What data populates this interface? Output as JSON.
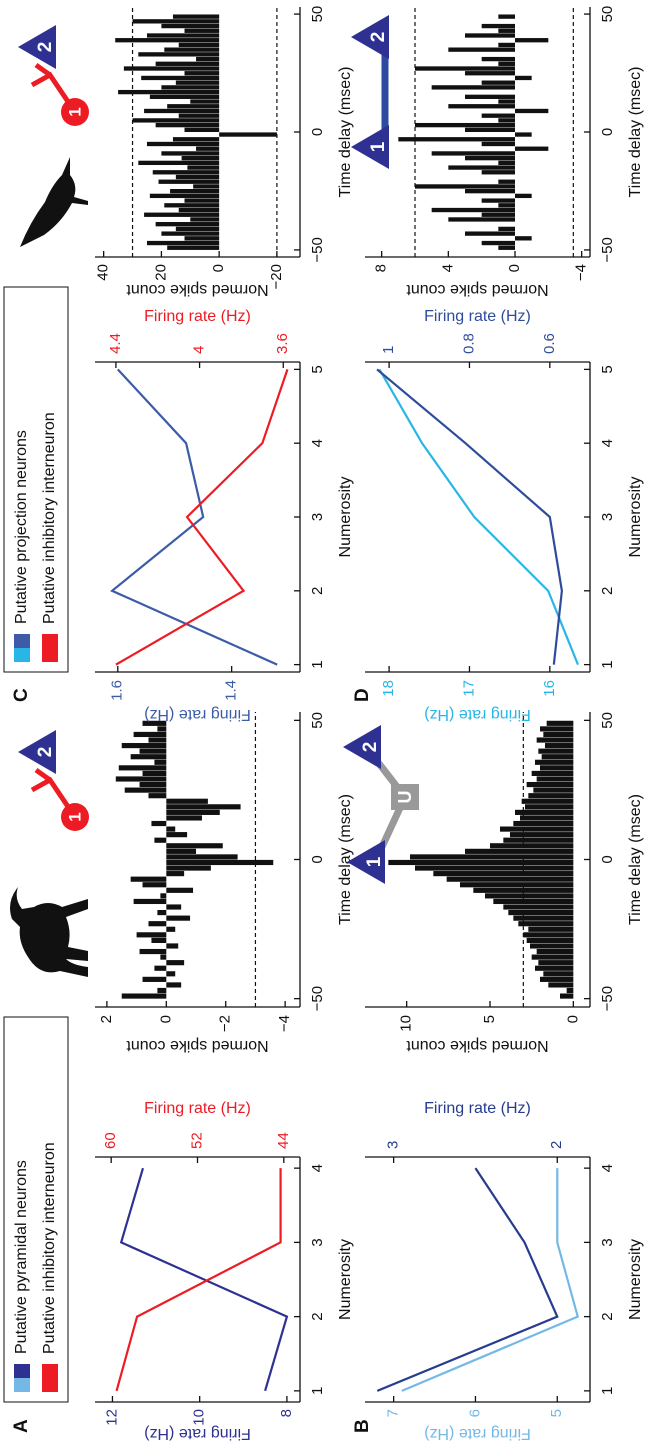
{
  "chart_data": [
    {
      "type": "line",
      "panel": "A",
      "x": [
        1,
        2,
        3,
        4
      ],
      "xlim": [
        0.85,
        4.15
      ],
      "xticks": [
        1,
        2,
        3,
        4
      ],
      "xlabel": "Numerosity",
      "ylabel": "Firing rate (Hz)",
      "y2label": "Firing rate (Hz)",
      "ylim": [
        7.7,
        12.4
      ],
      "yticks": [
        8,
        10,
        12
      ],
      "y2lim": [
        42.5,
        61.5
      ],
      "y2ticks": [
        44,
        52,
        60
      ],
      "legend": true,
      "series": [
        {
          "name": "Putative pyramidal neurons",
          "color": "#2e3192",
          "values": [
            8.5,
            8.0,
            11.8,
            11.3
          ]
        },
        {
          "name": "Putative inhibitory interneuron",
          "color": "#ed1c24",
          "axis": "y2",
          "values": [
            59.5,
            57.6,
            44.3,
            44.3
          ]
        }
      ]
    },
    {
      "type": "histogram",
      "xlabel": "Time delay (msec)",
      "ylabel": "Normed spike count",
      "color": "#111111",
      "neuron_labels": [
        "1",
        "2"
      ],
      "bins": [
        -50,
        -48,
        -46,
        -44,
        -42,
        -40,
        -38,
        -36,
        -34,
        -32,
        -30,
        -28,
        -26,
        -24,
        -22,
        -20,
        -18,
        -16,
        -14,
        -12,
        -10,
        -8,
        -6,
        -4,
        -2,
        0,
        2,
        4,
        6,
        8,
        10,
        12,
        14,
        16,
        18,
        20,
        22,
        24,
        26,
        28,
        30,
        32,
        34,
        36,
        38,
        40,
        42,
        44,
        46,
        48,
        50
      ],
      "values": [
        1.5,
        0.3,
        -0.5,
        0.8,
        -0.3,
        0.4,
        -0.6,
        0.2,
        0.9,
        -0.4,
        0.5,
        1.0,
        -0.3,
        0.6,
        -0.8,
        0.3,
        -0.5,
        1.1,
        0.2,
        -0.9,
        0.8,
        1.2,
        -0.6,
        -1.5,
        -3.6,
        -2.4,
        -1.0,
        -1.9,
        0.4,
        -0.7,
        -0.3,
        0.5,
        -1.2,
        -1.8,
        -2.5,
        -1.4,
        0.6,
        1.4,
        0.9,
        1.7,
        0.8,
        1.6,
        0.4,
        1.2,
        0.9,
        1.5,
        0.6,
        1.1,
        0.3,
        0.8
      ],
      "reference_lines": [
        -3
      ],
      "xlim": [
        -53,
        53
      ],
      "xticks": [
        {
          "value": -50,
          "label": "−50"
        },
        0,
        50
      ],
      "ylim": [
        -4.5,
        2.4
      ],
      "yticks": [
        {
          "value": -4,
          "label": "−4"
        },
        {
          "value": -2,
          "label": "−2"
        },
        0,
        2
      ]
    },
    {
      "type": "line",
      "panel": "C",
      "x": [
        1,
        2,
        3,
        4,
        5
      ],
      "xlim": [
        0.9,
        5.1
      ],
      "xticks": [
        1,
        2,
        3,
        4,
        5
      ],
      "xlabel": "Numerosity",
      "ylabel": "Firing rate (Hz)",
      "y2label": "Firing rate (Hz)",
      "ylim": [
        1.28,
        1.64
      ],
      "yticks": [
        1.4,
        1.6
      ],
      "y2lim": [
        3.52,
        4.5
      ],
      "y2ticks": [
        3.6,
        4,
        4.4
      ],
      "legend": true,
      "series": [
        {
          "name": "Putative projection neurons",
          "color": "#3d5ca8",
          "values": [
            1.32,
            1.61,
            1.45,
            1.48,
            1.6
          ]
        },
        {
          "name": "Putative inhibitory interneuron",
          "color": "#ed1c24",
          "axis": "y2",
          "values": [
            4.4,
            3.79,
            4.06,
            3.7,
            3.58
          ]
        }
      ]
    },
    {
      "type": "histogram",
      "xlabel": "Time delay (msec)",
      "ylabel": "Normed spike count",
      "color": "#111111",
      "neuron_labels": [
        "1",
        "2"
      ],
      "bins": [
        -50,
        -48,
        -46,
        -44,
        -42,
        -40,
        -38,
        -36,
        -34,
        -32,
        -30,
        -28,
        -26,
        -24,
        -22,
        -20,
        -18,
        -16,
        -14,
        -12,
        -10,
        -8,
        -6,
        -4,
        -2,
        0,
        2,
        4,
        6,
        8,
        10,
        12,
        14,
        16,
        18,
        20,
        22,
        24,
        26,
        28,
        30,
        32,
        34,
        36,
        38,
        40,
        42,
        44,
        46,
        48,
        50
      ],
      "values": [
        18,
        25,
        12,
        20,
        15,
        22,
        10,
        26,
        14,
        19,
        12,
        24,
        17,
        9,
        21,
        15,
        23,
        11,
        28,
        13,
        20,
        8,
        25,
        16,
        -20,
        12,
        22,
        30,
        14,
        26,
        18,
        10,
        24,
        35,
        20,
        15,
        27,
        12,
        33,
        22,
        8,
        28,
        19,
        14,
        36,
        25,
        12,
        20,
        30,
        16
      ],
      "reference_lines": [
        30,
        -20
      ],
      "xlim": [
        -53,
        53
      ],
      "xticks": [
        {
          "value": -50,
          "label": "−50"
        },
        0,
        50
      ],
      "ylim": [
        -28,
        43
      ],
      "yticks": [
        {
          "value": -20,
          "label": "−20"
        },
        0,
        20,
        40
      ]
    },
    {
      "type": "line",
      "panel": "B",
      "x": [
        1,
        2,
        3,
        4
      ],
      "xlim": [
        0.85,
        4.15
      ],
      "xticks": [
        1,
        2,
        3,
        4
      ],
      "xlabel": "Numerosity",
      "ylabel": "Firing rate (Hz)",
      "y2label": "Firing rate (Hz)",
      "ylim": [
        4.6,
        7.35
      ],
      "yticks": [
        5,
        6,
        7
      ],
      "y2lim": [
        1.8,
        3.175
      ],
      "y2ticks": [
        2,
        3
      ],
      "series": [
        {
          "color": "#74b9e6",
          "values": [
            6.9,
            4.75,
            5.0,
            5.0
          ]
        },
        {
          "color": "#263c8f",
          "axis": "y2",
          "values": [
            3.1,
            2.0,
            2.2,
            2.5
          ]
        }
      ]
    },
    {
      "type": "histogram",
      "xlabel": "Time delay (msec)",
      "ylabel": "Normed spike count",
      "color": "#111111",
      "neuron_labels": [
        "1",
        "2"
      ],
      "unit_label": "U",
      "bins": [
        -50,
        -48,
        -46,
        -44,
        -42,
        -40,
        -38,
        -36,
        -34,
        -32,
        -30,
        -28,
        -26,
        -24,
        -22,
        -20,
        -18,
        -16,
        -14,
        -12,
        -10,
        -8,
        -6,
        -4,
        -2,
        0,
        2,
        4,
        6,
        8,
        10,
        12,
        14,
        16,
        18,
        20,
        22,
        24,
        26,
        28,
        30,
        32,
        34,
        36,
        38,
        40,
        42,
        44,
        46,
        48,
        50
      ],
      "values": [
        0.8,
        0.4,
        1.5,
        2.0,
        1.8,
        2.3,
        2.1,
        2.5,
        2.2,
        2.6,
        2.8,
        3.0,
        2.7,
        3.3,
        3.6,
        3.9,
        4.2,
        4.8,
        5.3,
        6.0,
        6.8,
        7.6,
        8.4,
        9.5,
        11.1,
        9.8,
        6.5,
        5.0,
        4.2,
        3.8,
        4.4,
        3.6,
        3.2,
        3.5,
        2.9,
        3.1,
        2.7,
        2.4,
        2.8,
        2.2,
        2.5,
        2.0,
        2.3,
        1.9,
        2.1,
        1.7,
        2.2,
        1.8,
        2.0,
        1.6
      ],
      "reference_lines": [
        3
      ],
      "xlim": [
        -53,
        53
      ],
      "xticks": [
        {
          "value": -50,
          "label": "−50"
        },
        0,
        50
      ],
      "ylim": [
        -1,
        12.5
      ],
      "yticks": [
        0,
        5,
        10
      ]
    },
    {
      "type": "line",
      "panel": "D",
      "x": [
        1,
        2,
        3,
        4,
        5
      ],
      "xlim": [
        0.9,
        5.1
      ],
      "xticks": [
        1,
        2,
        3,
        4,
        5
      ],
      "xlabel": "Numerosity",
      "ylabel": "Firing rate (Hz)",
      "y2label": "Firing rate (Hz)",
      "ylim": [
        15.5,
        18.3
      ],
      "yticks": [
        16,
        17,
        18
      ],
      "y2lim": [
        0.5,
        1.06
      ],
      "y2ticks": [
        0.6,
        0.8,
        1
      ],
      "series": [
        {
          "color": "#29b6e6",
          "values": [
            15.65,
            16.02,
            16.94,
            17.59,
            18.12
          ]
        },
        {
          "color": "#2f4c9c",
          "axis": "y2",
          "values": [
            0.59,
            0.57,
            0.6,
            0.81,
            1.03
          ]
        }
      ]
    },
    {
      "type": "histogram",
      "xlabel": "Time delay (msec)",
      "ylabel": "Normed spike count",
      "color": "#111111",
      "neuron_labels": [
        "1",
        "2"
      ],
      "bins": [
        -50,
        -48,
        -46,
        -44,
        -42,
        -40,
        -38,
        -36,
        -34,
        -32,
        -30,
        -28,
        -26,
        -24,
        -22,
        -20,
        -18,
        -16,
        -14,
        -12,
        -10,
        -8,
        -6,
        -4,
        -2,
        0,
        2,
        4,
        6,
        8,
        10,
        12,
        14,
        16,
        18,
        20,
        22,
        24,
        26,
        28,
        30,
        32,
        34,
        36,
        38,
        40,
        42,
        44,
        46,
        48,
        50
      ],
      "values": [
        1,
        2,
        -1,
        3,
        1,
        0,
        4,
        2,
        5,
        1,
        2,
        -1,
        3,
        6,
        1,
        0,
        2,
        4,
        1,
        3,
        5,
        -2,
        2,
        7,
        -1,
        3,
        6,
        1,
        2,
        -2,
        4,
        1,
        3,
        0,
        5,
        2,
        -1,
        3,
        6,
        1,
        2,
        0,
        4,
        1,
        -2,
        3,
        1,
        2,
        0,
        1
      ],
      "reference_lines": [
        6,
        -3.5
      ],
      "xlim": [
        -53,
        53
      ],
      "xticks": [
        {
          "value": -50,
          "label": "−50"
        },
        0,
        50
      ],
      "ylim": [
        -4.5,
        9
      ],
      "yticks": [
        {
          "value": -4,
          "label": "−4"
        },
        0,
        4,
        8
      ]
    }
  ]
}
